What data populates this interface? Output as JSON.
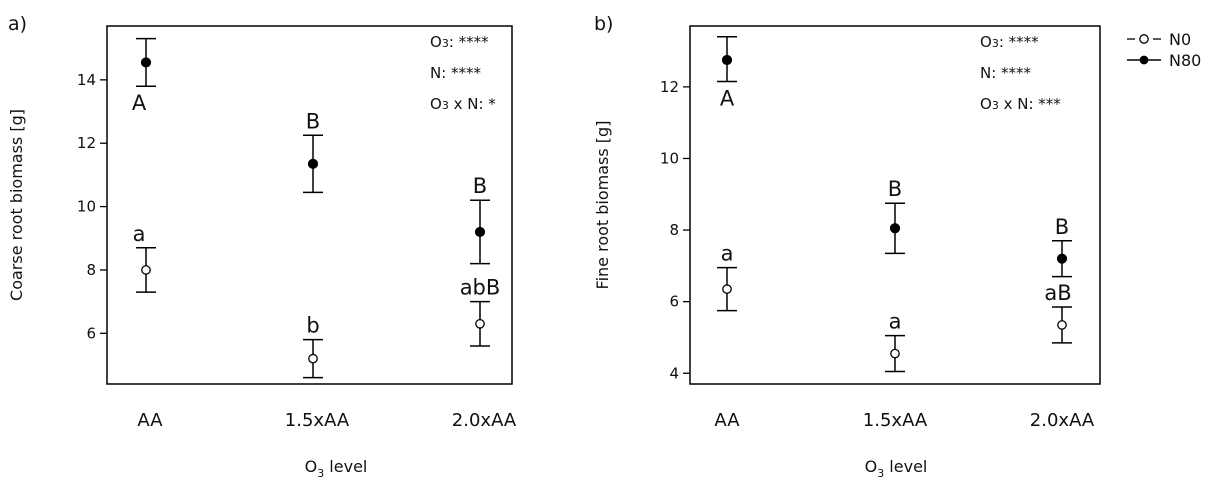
{
  "chart_data": [
    {
      "type": "scatter",
      "panel_label": "a)",
      "categories": [
        "AA",
        "1.5xAA",
        "2.0xAA"
      ],
      "xlabel_main": "O",
      "xlabel_sub": "3",
      "xlabel_rest": " level",
      "ylabel": "Coarse root biomass [g]",
      "ylim": [
        4.4,
        15.7
      ],
      "yticks": [
        6,
        8,
        10,
        12,
        14
      ],
      "series": [
        {
          "name": "N0",
          "marker": "open-circle",
          "values": [
            8.0,
            5.2,
            6.3
          ],
          "error_low": [
            7.3,
            4.6,
            5.6
          ],
          "error_high": [
            8.7,
            5.8,
            7.0
          ],
          "letters": [
            "a",
            "b",
            "abB"
          ]
        },
        {
          "name": "N80",
          "marker": "filled-circle",
          "values": [
            14.55,
            11.35,
            9.2
          ],
          "error_low": [
            13.8,
            10.45,
            8.2
          ],
          "error_high": [
            15.3,
            12.25,
            10.2
          ],
          "letters": [
            "A",
            "B",
            "B"
          ]
        }
      ],
      "stats": [
        {
          "pre": "O",
          "sub": "3",
          "rest": ": ****"
        },
        {
          "pre": "N",
          "sub": "",
          "rest": ": ****"
        },
        {
          "pre": "O",
          "sub": "3",
          "rest": " x N: *"
        }
      ]
    },
    {
      "type": "scatter",
      "panel_label": "b)",
      "categories": [
        "AA",
        "1.5xAA",
        "2.0xAA"
      ],
      "xlabel_main": "O",
      "xlabel_sub": "3",
      "xlabel_rest": " level",
      "ylabel": "Fine root biomass [g]",
      "ylim": [
        3.7,
        13.7
      ],
      "yticks": [
        4,
        6,
        8,
        10,
        12
      ],
      "series": [
        {
          "name": "N0",
          "marker": "open-circle",
          "values": [
            6.35,
            4.55,
            5.35
          ],
          "error_low": [
            5.75,
            4.05,
            4.85
          ],
          "error_high": [
            6.95,
            5.05,
            5.85
          ],
          "letters": [
            "a",
            "a",
            "aB"
          ]
        },
        {
          "name": "N80",
          "marker": "filled-circle",
          "values": [
            12.75,
            8.05,
            7.2
          ],
          "error_low": [
            12.15,
            7.35,
            6.7
          ],
          "error_high": [
            13.4,
            8.75,
            7.7
          ],
          "letters": [
            "A",
            "B",
            "B"
          ]
        }
      ],
      "stats": [
        {
          "pre": "O",
          "sub": "3",
          "rest": ": ****"
        },
        {
          "pre": "N",
          "sub": "",
          "rest": ": ****"
        },
        {
          "pre": "O",
          "sub": "3",
          "rest": " x N: ***"
        }
      ]
    }
  ],
  "legend": {
    "position": "top-right",
    "items": [
      {
        "name": "N0",
        "marker": "open-circle",
        "line": "dashed"
      },
      {
        "name": "N80",
        "marker": "filled-circle",
        "line": "solid"
      }
    ]
  }
}
